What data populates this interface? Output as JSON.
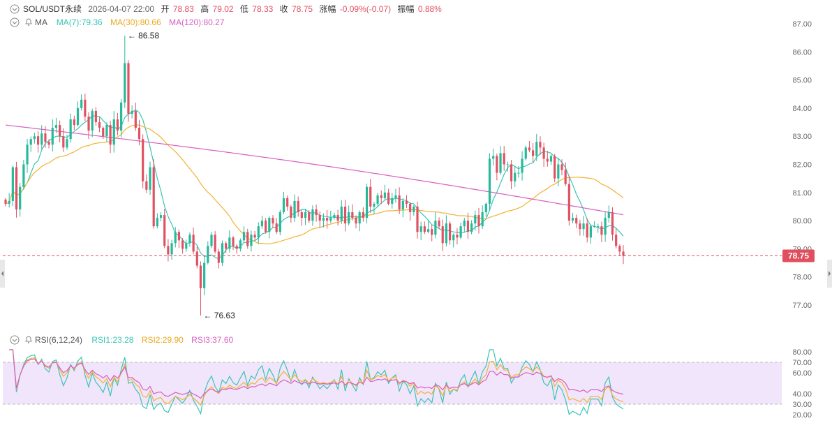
{
  "header": {
    "symbol": "SOL/USDT永续",
    "datetime": "2026-04-07 22:00",
    "open_label": "开",
    "open": "78.83",
    "high_label": "高",
    "high": "79.02",
    "low_label": "低",
    "low": "78.33",
    "close_label": "收",
    "close": "78.75",
    "change_label": "涨幅",
    "change": "-0.09%(-0.07)",
    "amplitude_label": "振幅",
    "amplitude": "0.88%"
  },
  "ma_legend": {
    "label": "MA",
    "ma7": "MA(7):79.36",
    "ma30": "MA(30):80.66",
    "ma120": "MA(120):80.27"
  },
  "rsi_legend": {
    "label": "RSI(6,12,24)",
    "rsi1": "RSI1:23.28",
    "rsi2": "RSI2:29.90",
    "rsi3": "RSI3:37.60"
  },
  "annotations": {
    "max_label": "← 86.58",
    "min_label": "← 76.63"
  },
  "last_price_tag": "78.75",
  "colors": {
    "up": "#26b99a",
    "down": "#e05263",
    "ma7": "#38c5b6",
    "ma30": "#f2b234",
    "ma120": "#d85fc0",
    "rsi_band": "#f1e5fb",
    "price_tag_bg": "#e04f5f"
  },
  "icons": {
    "collapse": "chevron-down-circle-icon",
    "alert": "bell-icon",
    "scroll_left": "arrow-left-icon",
    "scroll_right": "arrow-right-icon"
  },
  "chart_data": [
    {
      "type": "candlestick",
      "ylim": [
        76.4,
        87.4
      ],
      "y_ticks": [
        "87.00",
        "86.00",
        "85.00",
        "84.00",
        "83.00",
        "82.00",
        "81.00",
        "80.00",
        "79.00",
        "78.00",
        "77.00"
      ],
      "last_price": 78.75,
      "max": 86.58,
      "min": 76.63,
      "closes": [
        80.6,
        80.7,
        81.9,
        80.4,
        81.2,
        82.0,
        82.7,
        82.9,
        83.0,
        82.7,
        83.1,
        82.8,
        82.7,
        83.3,
        83.4,
        83.0,
        82.6,
        82.9,
        83.6,
        83.4,
        84.0,
        84.3,
        83.7,
        83.2,
        83.9,
        83.5,
        83.3,
        83.0,
        83.4,
        82.7,
        83.6,
        83.2,
        84.2,
        85.6,
        83.8,
        83.9,
        83.3,
        82.9,
        81.4,
        81.1,
        81.9,
        79.8,
        80.1,
        80.2,
        79.1,
        78.8,
        79.2,
        79.6,
        79.3,
        79.0,
        79.2,
        79.5,
        78.9,
        78.4,
        77.6,
        78.5,
        79.1,
        79.5,
        78.9,
        78.5,
        79.2,
        79.0,
        79.4,
        79.1,
        79.0,
        79.3,
        79.6,
        79.1,
        79.5,
        79.4,
        79.8,
        80.0,
        79.6,
        80.1,
        79.9,
        79.6,
        80.3,
        80.8,
        80.5,
        80.1,
        80.7,
        80.3,
        80.1,
        80.3,
        80.0,
        80.4,
        80.2,
        80.0,
        80.1,
        80.0,
        80.1,
        80.2,
        80.0,
        80.5,
        79.9,
        80.3,
        80.1,
        79.9,
        80.3,
        80.1,
        81.2,
        80.5,
        80.6,
        80.9,
        80.8,
        81.0,
        80.6,
        80.8,
        80.9,
        80.4,
        80.7,
        80.6,
        80.3,
        80.5,
        79.6,
        79.8,
        79.6,
        79.7,
        79.5,
        80.0,
        79.8,
        79.2,
        79.9,
        79.3,
        79.5,
        79.4,
        79.8,
        80.0,
        79.6,
        79.9,
        80.2,
        79.8,
        80.3,
        80.6,
        82.2,
        82.3,
        81.7,
        82.4,
        82.0,
        82.0,
        81.4,
        81.7,
        81.7,
        82.2,
        82.6,
        82.5,
        82.3,
        82.8,
        82.6,
        82.2,
        82.1,
        82.3,
        81.5,
        82.0,
        81.8,
        81.3,
        80.0,
        80.1,
        79.9,
        79.7,
        79.9,
        79.4,
        79.8,
        79.8,
        79.8,
        79.5,
        80.1,
        80.3,
        79.5,
        79.1,
        78.9,
        78.75
      ]
    },
    {
      "type": "line",
      "title": "RSI(6,12,24)",
      "ylim": [
        15,
        85
      ],
      "y_ticks": [
        "80.00",
        "70.00",
        "60.00",
        "40.00",
        "30.00",
        "20.00"
      ],
      "band": [
        30,
        70
      ],
      "series": [
        {
          "name": "RSI1",
          "last": 23.28
        },
        {
          "name": "RSI2",
          "last": 29.9
        },
        {
          "name": "RSI3",
          "last": 37.6
        }
      ]
    }
  ]
}
